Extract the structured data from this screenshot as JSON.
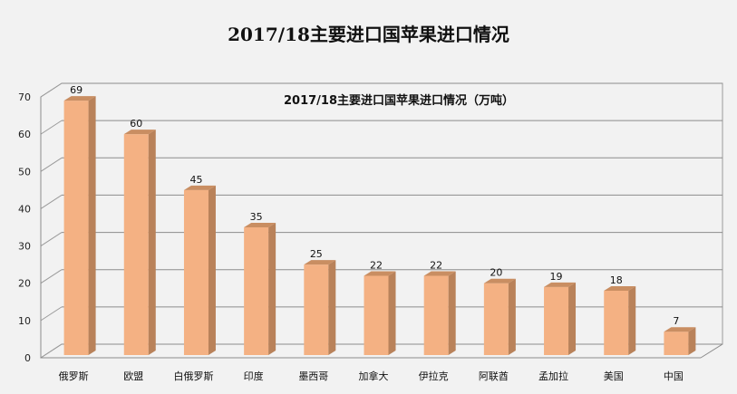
{
  "page_title": "2017/18主要进口国苹果进口情况",
  "chart_data": {
    "type": "bar",
    "title": "2017/18主要进口国苹果进口情况（万吨）",
    "categories": [
      "俄罗斯",
      "欧盟",
      "白俄罗斯",
      "印度",
      "墨西哥",
      "加拿大",
      "伊拉克",
      "阿联酋",
      "孟加拉",
      "美国",
      "中国"
    ],
    "values": [
      69,
      60,
      45,
      35,
      25,
      22,
      22,
      20,
      19,
      18,
      7
    ],
    "value_labels": [
      "69",
      "60",
      "45",
      "35",
      "25",
      "22",
      "22",
      "20",
      "19",
      "18",
      "7"
    ],
    "xlabel": "",
    "ylabel": "",
    "ylim": [
      0,
      70
    ],
    "yticks": [
      "0",
      "10",
      "20",
      "30",
      "40",
      "50",
      "60",
      "70"
    ],
    "grid": true,
    "bar_color": "#f4b183",
    "bar_side_color": "#b9825a",
    "bar_top_color": "#c98e62"
  }
}
